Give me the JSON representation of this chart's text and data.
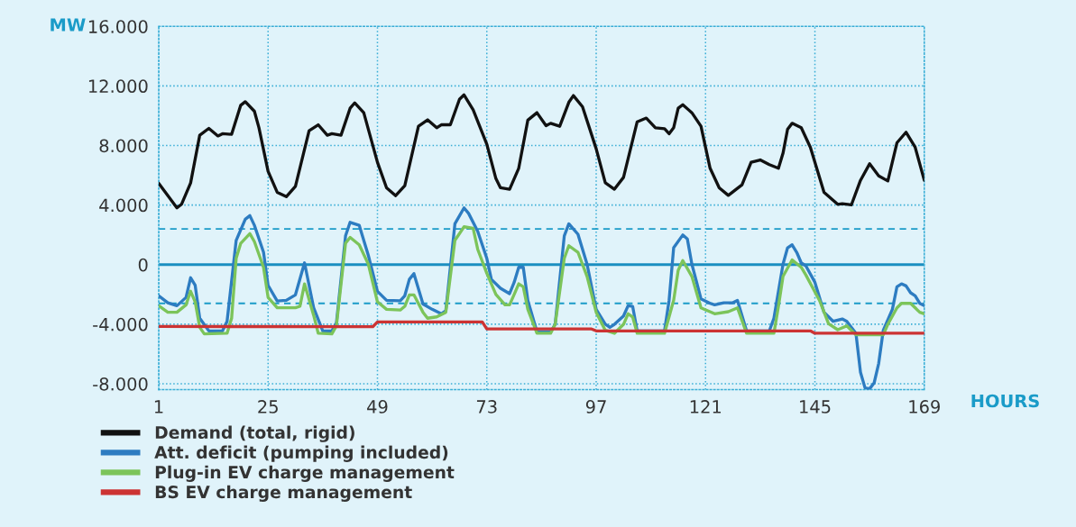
{
  "chart_data": {
    "type": "line",
    "xlabel": "HOURS",
    "ylabel": "MW",
    "xlim": [
      1,
      169
    ],
    "xticks": [
      1,
      25,
      49,
      73,
      97,
      121,
      145,
      169
    ],
    "ylim": [
      -8400,
      16000
    ],
    "yticks": [
      {
        "value": -8000,
        "label": "-8.000"
      },
      {
        "value": -4000,
        "label": "-4.000"
      },
      0,
      {
        "value": 4000,
        "label": "4.000"
      },
      {
        "value": 8000,
        "label": "8.000"
      },
      {
        "value": 12000,
        "label": "12.000"
      },
      {
        "value": 16000,
        "label": "16.000"
      }
    ],
    "grid": true,
    "legend": "bottom left",
    "ref_lines": [
      {
        "axis": "y",
        "value": 0,
        "color": "#1a8fc0",
        "line_style": "solid"
      },
      {
        "axis": "y",
        "value": 2400,
        "color": "#1a9bc8",
        "line_style": "dashed"
      },
      {
        "axis": "y",
        "value": -2600,
        "color": "#1a9bc8",
        "line_style": "dashed"
      }
    ],
    "series": [
      {
        "name": "Demand (total, rigid)",
        "color": "#111111",
        "x": [
          1,
          5,
          6,
          8,
          10,
          12,
          14,
          15,
          17,
          19,
          20,
          22,
          23,
          25,
          27,
          29,
          31,
          34,
          36,
          38,
          39,
          41,
          43,
          44,
          46,
          49,
          51,
          53,
          55,
          58,
          60,
          62,
          63,
          65,
          67,
          68,
          70,
          73,
          75,
          76,
          78,
          80,
          82,
          84,
          86,
          87,
          89,
          91,
          92,
          94,
          97,
          99,
          101,
          103,
          106,
          108,
          110,
          112,
          113,
          114,
          115,
          116,
          118,
          120,
          122,
          124,
          126,
          129,
          131,
          133,
          135,
          137,
          138,
          139,
          140,
          142,
          144,
          147,
          150,
          151,
          153,
          155,
          157,
          159,
          161,
          163,
          165,
          167,
          169
        ],
        "values": [
          5460,
          3810,
          4050,
          5480,
          8690,
          9150,
          8640,
          8790,
          8750,
          10700,
          10940,
          10300,
          9190,
          6270,
          4860,
          4560,
          5260,
          8990,
          9390,
          8690,
          8790,
          8690,
          10500,
          10860,
          10200,
          6870,
          5160,
          4630,
          5300,
          9290,
          9720,
          9190,
          9390,
          9390,
          11100,
          11400,
          10400,
          8080,
          5770,
          5160,
          5060,
          6470,
          9700,
          10200,
          9330,
          9490,
          9290,
          10900,
          11350,
          10600,
          7780,
          5500,
          5060,
          5860,
          9590,
          9840,
          9190,
          9130,
          8790,
          9190,
          10500,
          10740,
          10200,
          9290,
          6470,
          5160,
          4650,
          5360,
          6870,
          7030,
          6710,
          6470,
          7480,
          9090,
          9490,
          9190,
          7880,
          4860,
          4050,
          4090,
          4010,
          5660,
          6770,
          5960,
          5620,
          8180,
          8890,
          7880,
          5660
        ]
      },
      {
        "name": "Att. deficit (pumping included)",
        "color": "#2d7cc1",
        "x": [
          1,
          3,
          5,
          7,
          8,
          9,
          10,
          12,
          15,
          16,
          18,
          20,
          21,
          22,
          24,
          25,
          27,
          29,
          31,
          33,
          35,
          37,
          39,
          40,
          42,
          43,
          45,
          47,
          49,
          51,
          54,
          55,
          56,
          57,
          59,
          61,
          63,
          64,
          65,
          66,
          68,
          69,
          71,
          73,
          74,
          76,
          78,
          79,
          80,
          81,
          82,
          84,
          87,
          88,
          90,
          91,
          93,
          95,
          97,
          99,
          100,
          101,
          103,
          104,
          105,
          106,
          112,
          113,
          114,
          116,
          117,
          118,
          120,
          122,
          123,
          125,
          127,
          128,
          130,
          135,
          136,
          138,
          139,
          140,
          141,
          142,
          143,
          145,
          147,
          149,
          151,
          152,
          154,
          155,
          156,
          157,
          158,
          159,
          160,
          162,
          163,
          164,
          165,
          166,
          167,
          168,
          169
        ],
        "values": [
          -2090,
          -2560,
          -2760,
          -2200,
          -880,
          -1390,
          -3600,
          -4450,
          -4450,
          -3810,
          1630,
          3050,
          3290,
          2640,
          830,
          -1390,
          -2440,
          -2400,
          -2030,
          120,
          -2900,
          -4450,
          -4450,
          -3910,
          1930,
          2840,
          2640,
          620,
          -1790,
          -2400,
          -2430,
          -2090,
          -990,
          -600,
          -2650,
          -3000,
          -3300,
          -3100,
          -180,
          2740,
          3810,
          3440,
          2240,
          420,
          -990,
          -1590,
          -1950,
          -1190,
          -180,
          -180,
          -2400,
          -4510,
          -4510,
          -4010,
          1930,
          2740,
          2040,
          30,
          -3000,
          -4000,
          -4210,
          -4010,
          -3450,
          -2760,
          -2800,
          -4450,
          -4450,
          -2400,
          1130,
          1990,
          1730,
          30,
          -2300,
          -2600,
          -2700,
          -2560,
          -2560,
          -2400,
          -4450,
          -4450,
          -3600,
          30,
          1130,
          1330,
          830,
          120,
          -80,
          -1190,
          -3200,
          -3810,
          -3650,
          -3810,
          -4610,
          -7230,
          -8280,
          -8340,
          -7940,
          -6630,
          -4410,
          -3000,
          -1490,
          -1290,
          -1430,
          -1890,
          -2090,
          -2600,
          -2760
        ]
      },
      {
        "name": "Plug-in EV charge management",
        "color": "#7cc45a",
        "x": [
          1,
          3,
          5,
          7,
          8,
          9,
          10,
          11,
          16,
          17,
          18,
          19,
          21,
          22,
          24,
          25,
          27,
          31,
          32,
          33,
          35,
          36,
          39,
          40,
          42,
          43,
          45,
          47,
          49,
          51,
          54,
          55,
          56,
          57,
          59,
          60,
          62,
          64,
          66,
          68,
          70,
          71,
          73,
          75,
          77,
          78,
          79,
          80,
          81,
          82,
          84,
          87,
          88,
          90,
          91,
          93,
          95,
          97,
          99,
          101,
          103,
          104,
          105,
          106,
          112,
          114,
          115,
          116,
          118,
          120,
          123,
          126,
          128,
          130,
          136,
          137,
          138,
          140,
          142,
          143,
          146,
          148,
          150,
          152,
          154,
          160,
          161,
          163,
          164,
          166,
          168,
          169
        ],
        "values": [
          -2760,
          -3200,
          -3200,
          -2700,
          -1790,
          -2500,
          -4210,
          -4650,
          -4610,
          -3600,
          420,
          1430,
          2080,
          1540,
          -180,
          -2200,
          -2900,
          -2900,
          -2800,
          -1290,
          -3400,
          -4610,
          -4650,
          -4110,
          1430,
          1830,
          1330,
          30,
          -2500,
          -3000,
          -3050,
          -2800,
          -2030,
          -2030,
          -3200,
          -3600,
          -3510,
          -3200,
          1630,
          2540,
          2440,
          1030,
          -580,
          -2000,
          -2700,
          -2700,
          -2000,
          -1290,
          -1490,
          -3000,
          -4610,
          -4610,
          -4010,
          420,
          1270,
          830,
          -790,
          -3200,
          -4410,
          -4610,
          -4010,
          -3300,
          -3510,
          -4610,
          -4610,
          -2400,
          -380,
          270,
          -790,
          -2900,
          -3300,
          -3160,
          -2900,
          -4610,
          -4610,
          -2800,
          -790,
          320,
          -180,
          -690,
          -2400,
          -3970,
          -4370,
          -4110,
          -4710,
          -4710,
          -4010,
          -2900,
          -2600,
          -2600,
          -3200,
          -3300
        ]
      },
      {
        "name": "BS EV charge management",
        "color": "#cc3333",
        "x": [
          1,
          48,
          49,
          72,
          73,
          96,
          97,
          144,
          145,
          169
        ],
        "values": [
          -4150,
          -4170,
          -3850,
          -3850,
          -4320,
          -4320,
          -4450,
          -4450,
          -4610,
          -4610
        ]
      }
    ]
  }
}
